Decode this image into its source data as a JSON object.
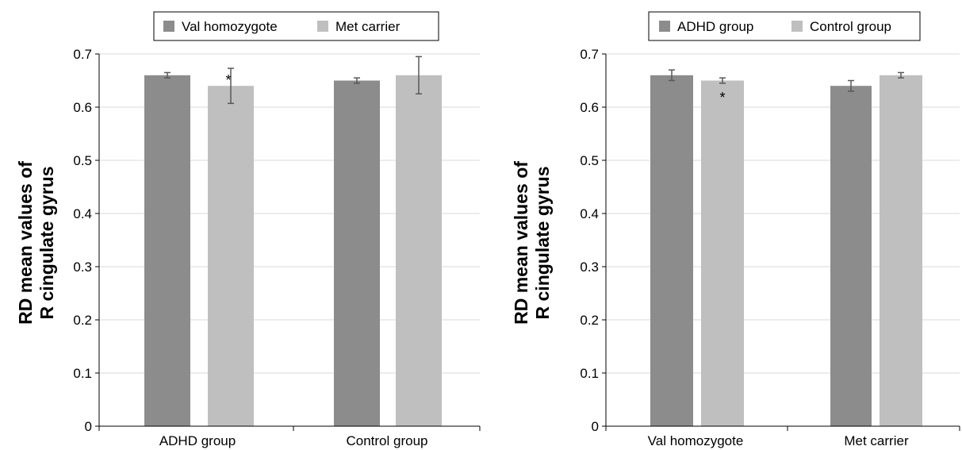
{
  "colors": {
    "dark_bar": "#8c8c8c",
    "light_bar": "#bfbfbf",
    "grid": "#d9d9d9",
    "axis": "#000000",
    "error": "#595959"
  },
  "chart_data": [
    {
      "type": "bar",
      "categories": [
        "ADHD group",
        "Control group"
      ],
      "series": [
        {
          "name": "Val homozygote",
          "values": [
            0.66,
            0.65
          ],
          "errors": [
            0.005,
            0.005
          ]
        },
        {
          "name": "Met carrier",
          "values": [
            0.64,
            0.66
          ],
          "errors": [
            0.033,
            0.035
          ]
        }
      ],
      "ylabel_line1": "RD mean values of",
      "ylabel_line2": "R cingulate gyrus",
      "ylim": [
        0,
        0.7
      ],
      "yticks": [
        "0",
        "0.1",
        "0.2",
        "0.3",
        "0.4",
        "0.5",
        "0.6",
        "0.7"
      ],
      "annotations": [
        {
          "text": "*",
          "category_index": 0,
          "series_index": 1
        }
      ],
      "grid": true,
      "legend_position": "top"
    },
    {
      "type": "bar",
      "categories": [
        "Val homozygote",
        "Met carrier"
      ],
      "series": [
        {
          "name": "ADHD group",
          "values": [
            0.66,
            0.64
          ],
          "errors": [
            0.01,
            0.01
          ]
        },
        {
          "name": "Control group",
          "values": [
            0.65,
            0.66
          ],
          "errors": [
            0.005,
            0.005
          ]
        }
      ],
      "ylabel_line1": "RD mean values of",
      "ylabel_line2": "R cingulate gyrus",
      "ylim": [
        0,
        0.7
      ],
      "yticks": [
        "0",
        "0.1",
        "0.2",
        "0.3",
        "0.4",
        "0.5",
        "0.6",
        "0.7"
      ],
      "annotations": [
        {
          "text": "*",
          "category_index": 0,
          "series_index": 1
        }
      ],
      "grid": true,
      "legend_position": "top"
    }
  ]
}
